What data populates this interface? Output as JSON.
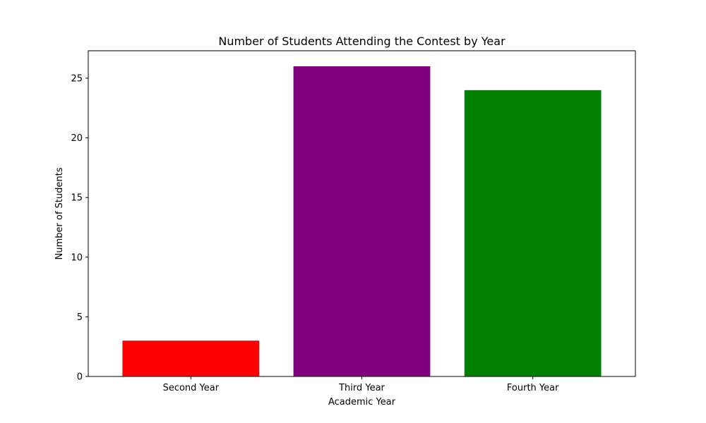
{
  "chart_data": {
    "type": "bar",
    "title": "Number of Students Attending the Contest by Year",
    "xlabel": "Academic Year",
    "ylabel": "Number of Students",
    "categories": [
      "Second Year",
      "Third Year",
      "Fourth Year"
    ],
    "values": [
      3,
      26,
      24
    ],
    "colors": [
      "#ff0000",
      "#800080",
      "#008000"
    ],
    "ylim": [
      0,
      27.3
    ],
    "yticks": [
      0,
      5,
      10,
      15,
      20,
      25
    ],
    "grid": false,
    "legend": "none"
  }
}
